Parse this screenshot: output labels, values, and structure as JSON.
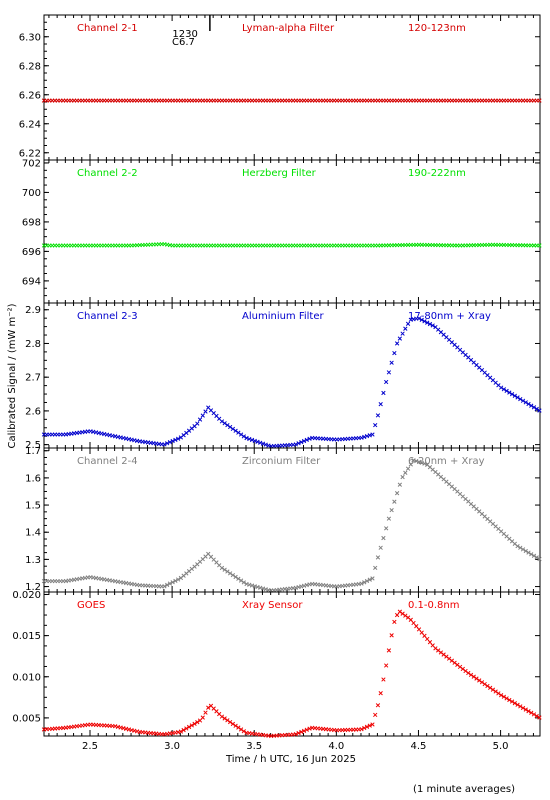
{
  "ylabel": "Calibrated Signal / (mW m⁻²)",
  "xlabel": "Time / h UTC, 16 Jun 2025",
  "footnote": "(1 minute averages)",
  "marker_annotation": {
    "time_label": "1230",
    "class_label": "C6.7",
    "x": 3.23
  },
  "chart_data": [
    {
      "type": "scatter",
      "labels": [
        "Channel 2-1",
        "Lyman-alpha Filter",
        "120-123nm"
      ],
      "color": "#d40000",
      "ylim": [
        6.215,
        6.315
      ],
      "yticks": [
        6.22,
        6.24,
        6.26,
        6.28,
        6.3
      ],
      "ytick_labels": [
        "6.22",
        "6.24",
        "6.26",
        "6.28",
        "6.30"
      ],
      "xlim": [
        2.22,
        5.24
      ],
      "x": [
        2.25,
        2.5,
        2.75,
        3.0,
        3.25,
        3.5,
        3.75,
        4.0,
        4.25,
        4.5,
        4.75,
        5.0,
        5.23
      ],
      "y": [
        6.256,
        6.256,
        6.256,
        6.256,
        6.256,
        6.256,
        6.256,
        6.256,
        6.256,
        6.256,
        6.256,
        6.256,
        6.256
      ]
    },
    {
      "type": "scatter",
      "labels": [
        "Channel 2-2",
        "Herzberg Filter",
        "190-222nm"
      ],
      "color": "#00e000",
      "ylim": [
        692.5,
        702.2
      ],
      "yticks": [
        694,
        696,
        698,
        700,
        702
      ],
      "ytick_labels": [
        "694",
        "696",
        "698",
        "700",
        "702"
      ],
      "xlim": [
        2.22,
        5.24
      ],
      "x": [
        2.25,
        2.5,
        2.75,
        2.95,
        3.0,
        3.25,
        3.5,
        3.75,
        4.0,
        4.25,
        4.5,
        4.75,
        4.95,
        5.23
      ],
      "y": [
        696.4,
        696.4,
        696.4,
        696.5,
        696.4,
        696.4,
        696.4,
        696.4,
        696.4,
        696.4,
        696.45,
        696.4,
        696.45,
        696.4
      ]
    },
    {
      "type": "scatter",
      "labels": [
        "Channel 2-3",
        "Aluminium Filter",
        "17-80nm + Xray"
      ],
      "color": "#0000cc",
      "ylim": [
        2.49,
        2.92
      ],
      "yticks": [
        2.5,
        2.6,
        2.7,
        2.8,
        2.9
      ],
      "ytick_labels": [
        "2.5",
        "2.6",
        "2.7",
        "2.8",
        "2.9"
      ],
      "xlim": [
        2.22,
        5.24
      ],
      "x": [
        2.22,
        2.35,
        2.5,
        2.65,
        2.8,
        2.95,
        3.05,
        3.15,
        3.22,
        3.3,
        3.45,
        3.6,
        3.75,
        3.85,
        4.0,
        4.15,
        4.22,
        4.25,
        4.3,
        4.37,
        4.45,
        4.5,
        4.6,
        4.8,
        5.0,
        5.24
      ],
      "y": [
        2.53,
        2.53,
        2.54,
        2.525,
        2.51,
        2.5,
        2.52,
        2.56,
        2.61,
        2.57,
        2.52,
        2.495,
        2.5,
        2.52,
        2.515,
        2.52,
        2.53,
        2.58,
        2.68,
        2.8,
        2.87,
        2.875,
        2.85,
        2.76,
        2.67,
        2.6
      ]
    },
    {
      "type": "scatter",
      "labels": [
        "Channel 2-4",
        "Zirconium Filter",
        "6-20nm + Xray"
      ],
      "color": "#808080",
      "ylim": [
        1.18,
        1.71
      ],
      "yticks": [
        1.2,
        1.3,
        1.4,
        1.5,
        1.6,
        1.7
      ],
      "ytick_labels": [
        "1.2",
        "1.3",
        "1.4",
        "1.5",
        "1.6",
        "1.7"
      ],
      "xlim": [
        2.22,
        5.24
      ],
      "x": [
        2.22,
        2.35,
        2.5,
        2.65,
        2.8,
        2.95,
        3.05,
        3.15,
        3.22,
        3.3,
        3.45,
        3.6,
        3.75,
        3.85,
        4.0,
        4.15,
        4.22,
        4.25,
        4.32,
        4.4,
        4.47,
        4.55,
        4.7,
        4.9,
        5.1,
        5.24
      ],
      "y": [
        1.22,
        1.22,
        1.235,
        1.22,
        1.205,
        1.2,
        1.23,
        1.28,
        1.32,
        1.27,
        1.21,
        1.185,
        1.195,
        1.21,
        1.2,
        1.21,
        1.23,
        1.3,
        1.45,
        1.6,
        1.665,
        1.65,
        1.57,
        1.46,
        1.35,
        1.3
      ]
    },
    {
      "type": "scatter",
      "labels": [
        "GOES",
        "Xray Sensor",
        "0.1-0.8nm"
      ],
      "color": "#ee0000",
      "ylim": [
        0.0028,
        0.0203
      ],
      "yticks": [
        0.005,
        0.01,
        0.015,
        0.02
      ],
      "ytick_labels": [
        "0.005",
        "0.010",
        "0.015",
        "0.020"
      ],
      "xlim": [
        2.22,
        5.24
      ],
      "x": [
        2.22,
        2.35,
        2.5,
        2.65,
        2.8,
        2.95,
        3.05,
        3.13,
        3.18,
        3.23,
        3.3,
        3.45,
        3.6,
        3.75,
        3.85,
        4.0,
        4.15,
        4.22,
        4.26,
        4.3,
        4.35,
        4.38,
        4.45,
        4.6,
        4.8,
        5.0,
        5.24
      ],
      "y": [
        0.0036,
        0.0038,
        0.0042,
        0.004,
        0.0033,
        0.003,
        0.0033,
        0.0042,
        0.0048,
        0.0066,
        0.0052,
        0.0032,
        0.0028,
        0.003,
        0.0038,
        0.0035,
        0.0036,
        0.0042,
        0.007,
        0.011,
        0.0165,
        0.018,
        0.017,
        0.0135,
        0.0105,
        0.0078,
        0.005
      ]
    }
  ]
}
